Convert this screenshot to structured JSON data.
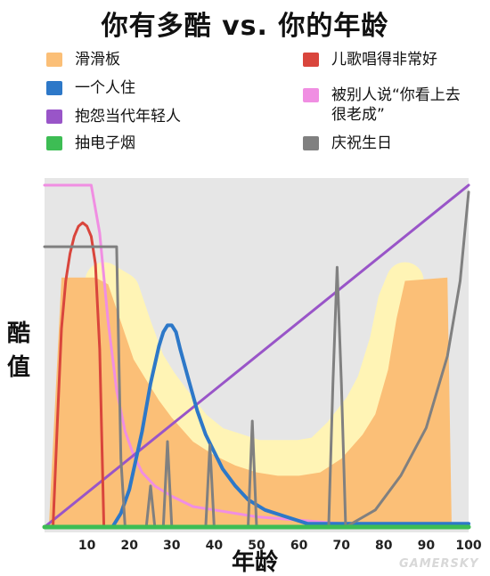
{
  "title": "你有多酷 vs. 你的年龄",
  "chart_data": {
    "type": "line",
    "title": "你有多酷 vs. 你的年龄",
    "xlabel": "年龄",
    "ylabel": "酷值",
    "xlim": [
      0,
      100
    ],
    "ylim": [
      0,
      100
    ],
    "x_ticks": [
      10,
      20,
      30,
      40,
      50,
      60,
      70,
      80,
      90,
      100
    ],
    "grid": false,
    "legend": "top",
    "series": [
      {
        "name": "滑滑板",
        "color": "#fbbf77",
        "kind": "area",
        "points": [
          [
            1,
            0
          ],
          [
            4,
            73
          ],
          [
            12,
            73
          ],
          [
            15,
            71
          ],
          [
            18,
            60
          ],
          [
            21,
            49
          ],
          [
            24,
            43
          ],
          [
            27,
            37
          ],
          [
            30,
            32
          ],
          [
            35,
            25
          ],
          [
            40,
            21
          ],
          [
            45,
            18
          ],
          [
            50,
            16
          ],
          [
            55,
            15
          ],
          [
            60,
            15
          ],
          [
            65,
            16
          ],
          [
            70,
            20
          ],
          [
            75,
            27
          ],
          [
            78,
            33
          ],
          [
            81,
            46
          ],
          [
            83,
            61
          ],
          [
            85,
            72
          ],
          [
            95,
            73
          ],
          [
            96,
            0
          ]
        ]
      },
      {
        "name": "儿歌唱得非常好",
        "color": "#d9453c",
        "points": [
          [
            2,
            0
          ],
          [
            3,
            30
          ],
          [
            4,
            58
          ],
          [
            5,
            72
          ],
          [
            6,
            80
          ],
          [
            7,
            85
          ],
          [
            8,
            88
          ],
          [
            9,
            89
          ],
          [
            10,
            88
          ],
          [
            11,
            85
          ],
          [
            12,
            77
          ],
          [
            13,
            52
          ],
          [
            14,
            0
          ]
        ]
      },
      {
        "name": "一个人住",
        "color": "#2d78c8",
        "points": [
          [
            16,
            0
          ],
          [
            18,
            4
          ],
          [
            20,
            11
          ],
          [
            23,
            28
          ],
          [
            25,
            42
          ],
          [
            27,
            53
          ],
          [
            28,
            57
          ],
          [
            29,
            59
          ],
          [
            30,
            59
          ],
          [
            31,
            57
          ],
          [
            32,
            52
          ],
          [
            34,
            43
          ],
          [
            36,
            34
          ],
          [
            38,
            27
          ],
          [
            40,
            22
          ],
          [
            42,
            17
          ],
          [
            45,
            12
          ],
          [
            48,
            8
          ],
          [
            52,
            5
          ],
          [
            57,
            3
          ],
          [
            62,
            1
          ],
          [
            68,
            1
          ],
          [
            100,
            1
          ]
        ]
      },
      {
        "name": "被别人说“你看上去很老成”",
        "color": "#f08ee2",
        "points": [
          [
            0,
            100
          ],
          [
            11,
            100
          ],
          [
            13,
            86
          ],
          [
            15,
            60
          ],
          [
            17,
            40
          ],
          [
            19,
            28
          ],
          [
            21,
            21
          ],
          [
            23,
            16
          ],
          [
            26,
            12
          ],
          [
            30,
            9
          ],
          [
            35,
            6
          ],
          [
            40,
            5
          ],
          [
            50,
            3
          ],
          [
            60,
            2
          ],
          [
            70,
            1
          ],
          [
            100,
            0
          ]
        ]
      },
      {
        "name": "抱怨当代年轻人",
        "color": "#9955c8",
        "points": [
          [
            0,
            0
          ],
          [
            100,
            100
          ]
        ]
      },
      {
        "name": "庆祝生日",
        "color": "#808080",
        "points": [
          [
            0,
            82
          ],
          [
            17,
            82
          ],
          [
            18,
            20
          ],
          [
            19,
            0
          ],
          [
            24,
            0
          ],
          [
            25,
            12
          ],
          [
            26,
            0
          ],
          [
            28,
            0
          ],
          [
            29,
            25
          ],
          [
            30,
            0
          ],
          [
            38,
            0
          ],
          [
            39,
            24
          ],
          [
            40,
            0
          ],
          [
            48,
            0
          ],
          [
            49,
            31
          ],
          [
            50,
            0
          ],
          [
            67,
            0
          ],
          [
            68,
            42
          ],
          [
            69,
            76
          ],
          [
            70,
            42
          ],
          [
            71,
            0
          ],
          [
            78,
            5
          ],
          [
            84,
            15
          ],
          [
            90,
            29
          ],
          [
            95,
            50
          ],
          [
            98,
            72
          ],
          [
            100,
            98
          ]
        ]
      },
      {
        "name": "抽电子烟",
        "color": "#3dbd54",
        "points": [
          [
            0,
            0
          ],
          [
            100,
            0
          ]
        ]
      }
    ],
    "background_band": {
      "color": "#fff4b5",
      "points": [
        [
          14,
          72
        ],
        [
          18,
          69
        ],
        [
          21,
          58
        ],
        [
          24,
          48
        ],
        [
          27,
          42
        ],
        [
          30,
          37
        ],
        [
          35,
          29
        ],
        [
          40,
          24
        ],
        [
          45,
          22
        ],
        [
          50,
          20
        ],
        [
          55,
          20
        ],
        [
          60,
          20
        ],
        [
          65,
          21
        ],
        [
          70,
          27
        ],
        [
          75,
          35
        ],
        [
          78,
          42
        ],
        [
          81,
          54
        ],
        [
          83,
          66
        ],
        [
          85,
          72
        ]
      ]
    }
  },
  "legend_items": [
    {
      "label": "滑滑板",
      "color": "#fbbf77"
    },
    {
      "label": "一个人住",
      "color": "#2d78c8"
    },
    {
      "label": "抱怨当代年轻人",
      "color": "#9955c8"
    },
    {
      "label": "抽电子烟",
      "color": "#3dbd54"
    },
    {
      "label": "儿歌唱得非常好",
      "color": "#d9453c"
    },
    {
      "label": "被别人说“你看上去\n很老成”",
      "color": "#f08ee2"
    },
    {
      "label": "庆祝生日",
      "color": "#808080"
    }
  ],
  "watermark": "GAMERSKY"
}
